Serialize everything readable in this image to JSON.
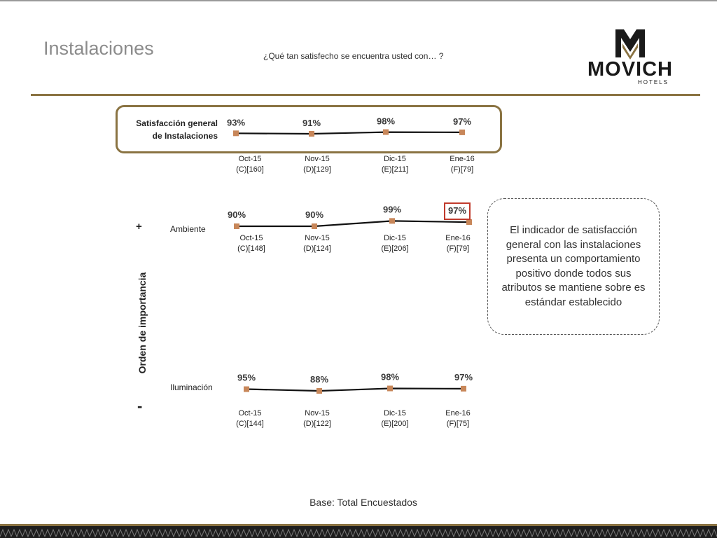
{
  "page": {
    "title": "Instalaciones",
    "question": "¿Qué tan satisfecho se encuentra usted con… ?",
    "logo_text": "MOVICH",
    "logo_subtext": "HOTELS",
    "axis_title": "Orden de importancia",
    "plus": "+",
    "minus": "-",
    "note": "El indicador de satisfacción general con las instalaciones presenta un comportamiento positivo donde todos sus atributos se mantiene sobre es estándar establecido",
    "base": "Base: Total Encuestados"
  },
  "colors": {
    "accent_gold": "#8a7342",
    "marker": "#c8875a",
    "line": "#111111",
    "highlight": "#c0392b"
  },
  "chart_data": [
    {
      "type": "line",
      "name": "Satisfacción general de Instalaciones",
      "label_line1": "Satisfacción general",
      "label_line2": "de Instalaciones",
      "categories": [
        "Oct-15",
        "Nov-15",
        "Dic-15",
        "Ene-16"
      ],
      "bases": [
        "(C)[160]",
        "(D)[129]",
        "(E)[211]",
        "(F)[79]"
      ],
      "values": [
        93,
        91,
        98,
        97
      ],
      "value_labels": [
        "93%",
        "91%",
        "98%",
        "97%"
      ],
      "highlight_index": null
    },
    {
      "type": "line",
      "name": "Ambiente",
      "categories": [
        "Oct-15",
        "Nov-15",
        "Dic-15",
        "Ene-16"
      ],
      "bases": [
        "(C)[148]",
        "(D)[124]",
        "(E)[206]",
        "(F)[79]"
      ],
      "values": [
        90,
        90,
        99,
        97
      ],
      "value_labels": [
        "90%",
        "90%",
        "99%",
        "97%"
      ],
      "highlight_index": 3
    },
    {
      "type": "line",
      "name": "Iluminación",
      "categories": [
        "Oct-15",
        "Nov-15",
        "Dic-15",
        "Ene-16"
      ],
      "bases": [
        "(C)[144]",
        "(D)[122]",
        "(E)[200]",
        "(F)[75]"
      ],
      "values": [
        95,
        88,
        98,
        97
      ],
      "value_labels": [
        "95%",
        "88%",
        "98%",
        "97%"
      ],
      "highlight_index": null
    }
  ]
}
